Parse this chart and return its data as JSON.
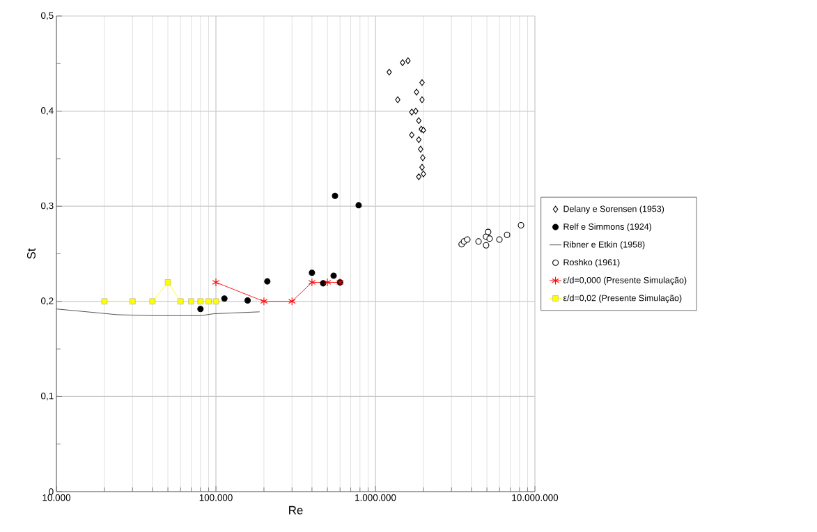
{
  "chart_data": {
    "type": "scatter",
    "xlabel": "Re",
    "ylabel": "St",
    "log": "x",
    "grid": true,
    "legend": "right",
    "xlim": [
      10000,
      10000000
    ],
    "ylim": [
      0,
      0.5
    ],
    "xticks": [
      {
        "value": 10000,
        "label": "10.000"
      },
      {
        "value": 100000,
        "label": "100.000"
      },
      {
        "value": 1000000,
        "label": "1.000.000"
      },
      {
        "value": 10000000,
        "label": "10.000.000"
      }
    ],
    "yticks": [
      0,
      {
        "value": 0.05,
        "label": null
      },
      {
        "value": 0.1,
        "label": "0,1"
      },
      {
        "value": 0.15,
        "label": null
      },
      {
        "value": 0.2,
        "label": "0,2"
      },
      {
        "value": 0.25,
        "label": null
      },
      {
        "value": 0.3,
        "label": "0,3"
      },
      {
        "value": 0.35,
        "label": null
      },
      {
        "value": 0.4,
        "label": "0,4"
      },
      {
        "value": 0.45,
        "label": null
      },
      {
        "value": 0.5,
        "label": "0,5"
      }
    ],
    "series": [
      {
        "name": "Delany e Sorensen (1953)",
        "marker": "diamond",
        "color": "#ffffff",
        "x": [
          1220000,
          1480000,
          1600000,
          1960000,
          1810000,
          1380000,
          1960000,
          1690000,
          1790000,
          1870000,
          1940000,
          2000000,
          1690000,
          1870000,
          1920000,
          1980000,
          1960000,
          2000000,
          1870000
        ],
        "values": [
          0.441,
          0.451,
          0.453,
          0.43,
          0.42,
          0.412,
          0.412,
          0.399,
          0.4,
          0.39,
          0.381,
          0.38,
          0.375,
          0.37,
          0.36,
          0.351,
          0.341,
          0.334,
          0.331
        ]
      },
      {
        "name": "Relf e Simmons (1924)",
        "marker": "circle",
        "color": "#000000",
        "x": [
          80000,
          113000,
          158000,
          200000,
          210000,
          400000,
          470000,
          547000,
          600000,
          558000,
          785000
        ],
        "values": [
          0.192,
          0.203,
          0.201,
          null,
          0.221,
          0.23,
          0.219,
          0.227,
          0.22,
          0.311,
          0.301
        ]
      },
      {
        "name": "Ribner e Etkin (1958)",
        "type": "line",
        "marker": "none",
        "color": "#404040",
        "x": [
          10000,
          18000,
          24000,
          40000,
          80000,
          97000,
          188000
        ],
        "values": [
          0.192,
          0.188,
          0.186,
          0.185,
          0.185,
          0.187,
          0.189
        ]
      },
      {
        "name": "Roshko (1961)",
        "marker": "circle",
        "color": "#ffffff",
        "x": [
          3470000,
          3590000,
          3770000,
          4430000,
          4940000,
          4940000,
          5090000,
          5200000,
          5990000,
          6690000,
          8180000
        ],
        "values": [
          0.26,
          0.263,
          0.265,
          0.263,
          0.259,
          0.268,
          0.273,
          0.266,
          0.265,
          0.27,
          0.28
        ]
      },
      {
        "name": "ε/d=0,000 (Presente Simulação)",
        "type": "line",
        "marker": "cross",
        "color": "#ff0000",
        "x": [
          100000,
          200000,
          300000,
          400000,
          500000,
          600000
        ],
        "values": [
          0.22,
          0.2,
          0.2,
          0.22,
          0.22,
          0.22
        ]
      },
      {
        "name": "ε/d=0,02 (Presente Simulação)",
        "type": "line",
        "marker": "square",
        "color": "#ffff00",
        "x": [
          20000,
          30000,
          40000,
          50000,
          60000,
          70000,
          80000,
          90000,
          100000
        ],
        "values": [
          0.2,
          0.2,
          0.2,
          0.22,
          0.2,
          0.2,
          0.2,
          0.2,
          0.2
        ]
      }
    ]
  }
}
